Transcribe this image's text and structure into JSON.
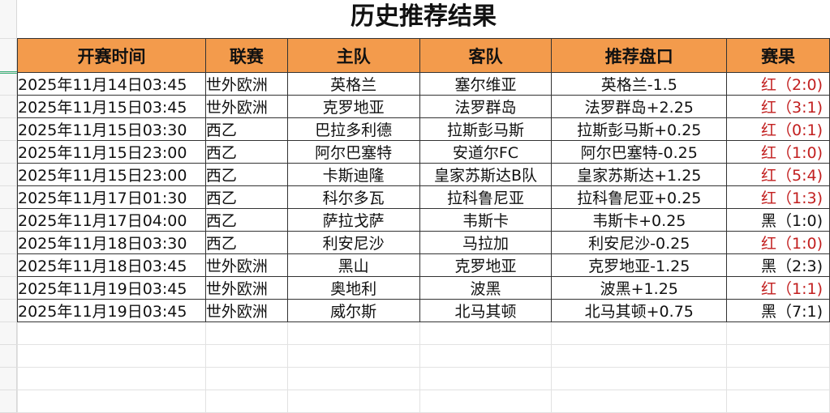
{
  "title": "历史推荐结果",
  "headers": [
    "开赛时间",
    "联赛",
    "主队",
    "客队",
    "推荐盘口",
    "赛果"
  ],
  "rows": [
    {
      "time": "2025年11月14日03:45",
      "league": "世外欧洲",
      "home": "英格兰",
      "away": "塞尔维亚",
      "pick": "英格兰-1.5",
      "result": "红（2:0)",
      "win": true
    },
    {
      "time": "2025年11月15日03:45",
      "league": "世外欧洲",
      "home": "克罗地亚",
      "away": "法罗群岛",
      "pick": "法罗群岛+2.25",
      "result": "红（3:1)",
      "win": true
    },
    {
      "time": "2025年11月15日03:30",
      "league": "西乙",
      "home": "巴拉多利德",
      "away": "拉斯彭马斯",
      "pick": "拉斯彭马斯+0.25",
      "result": "红（0:1)",
      "win": true
    },
    {
      "time": "2025年11月15日23:00",
      "league": "西乙",
      "home": "阿尔巴塞特",
      "away": "安道尔FC",
      "pick": "阿尔巴塞特-0.25",
      "result": "红（1:0)",
      "win": true
    },
    {
      "time": "2025年11月15日23:00",
      "league": "西乙",
      "home": "卡斯迪隆",
      "away": "皇家苏斯达B队",
      "pick": "皇家苏斯达+1.25",
      "result": "红（5:4)",
      "win": true
    },
    {
      "time": "2025年11月17日01:30",
      "league": "西乙",
      "home": "科尔多瓦",
      "away": "拉科鲁尼亚",
      "pick": "拉科鲁尼亚+0.25",
      "result": "红（1:3)",
      "win": true
    },
    {
      "time": "2025年11月17日04:00",
      "league": "西乙",
      "home": "萨拉戈萨",
      "away": "韦斯卡",
      "pick": "韦斯卡+0.25",
      "result": "黑（1:0)",
      "win": false
    },
    {
      "time": "2025年11月18日03:30",
      "league": "西乙",
      "home": "利安尼沙",
      "away": "马拉加",
      "pick": "利安尼沙-0.25",
      "result": "红（1:0)",
      "win": true
    },
    {
      "time": "2025年11月18日03:45",
      "league": "世外欧洲",
      "home": "黑山",
      "away": "克罗地亚",
      "pick": "克罗地亚-1.25",
      "result": "黑（2:3)",
      "win": false
    },
    {
      "time": "2025年11月19日03:45",
      "league": "世外欧洲",
      "home": "奥地利",
      "away": "波黑",
      "pick": "波黑+1.25",
      "result": "红（1:1)",
      "win": true
    },
    {
      "time": "2025年11月19日03:45",
      "league": "世外欧洲",
      "home": "威尔斯",
      "away": "北马其顿",
      "pick": "北马其顿+0.75",
      "result": "黑（7:1)",
      "win": false
    }
  ],
  "colors": {
    "header": "#f39b4c",
    "red": "#c21f1f",
    "black": "#111111"
  }
}
